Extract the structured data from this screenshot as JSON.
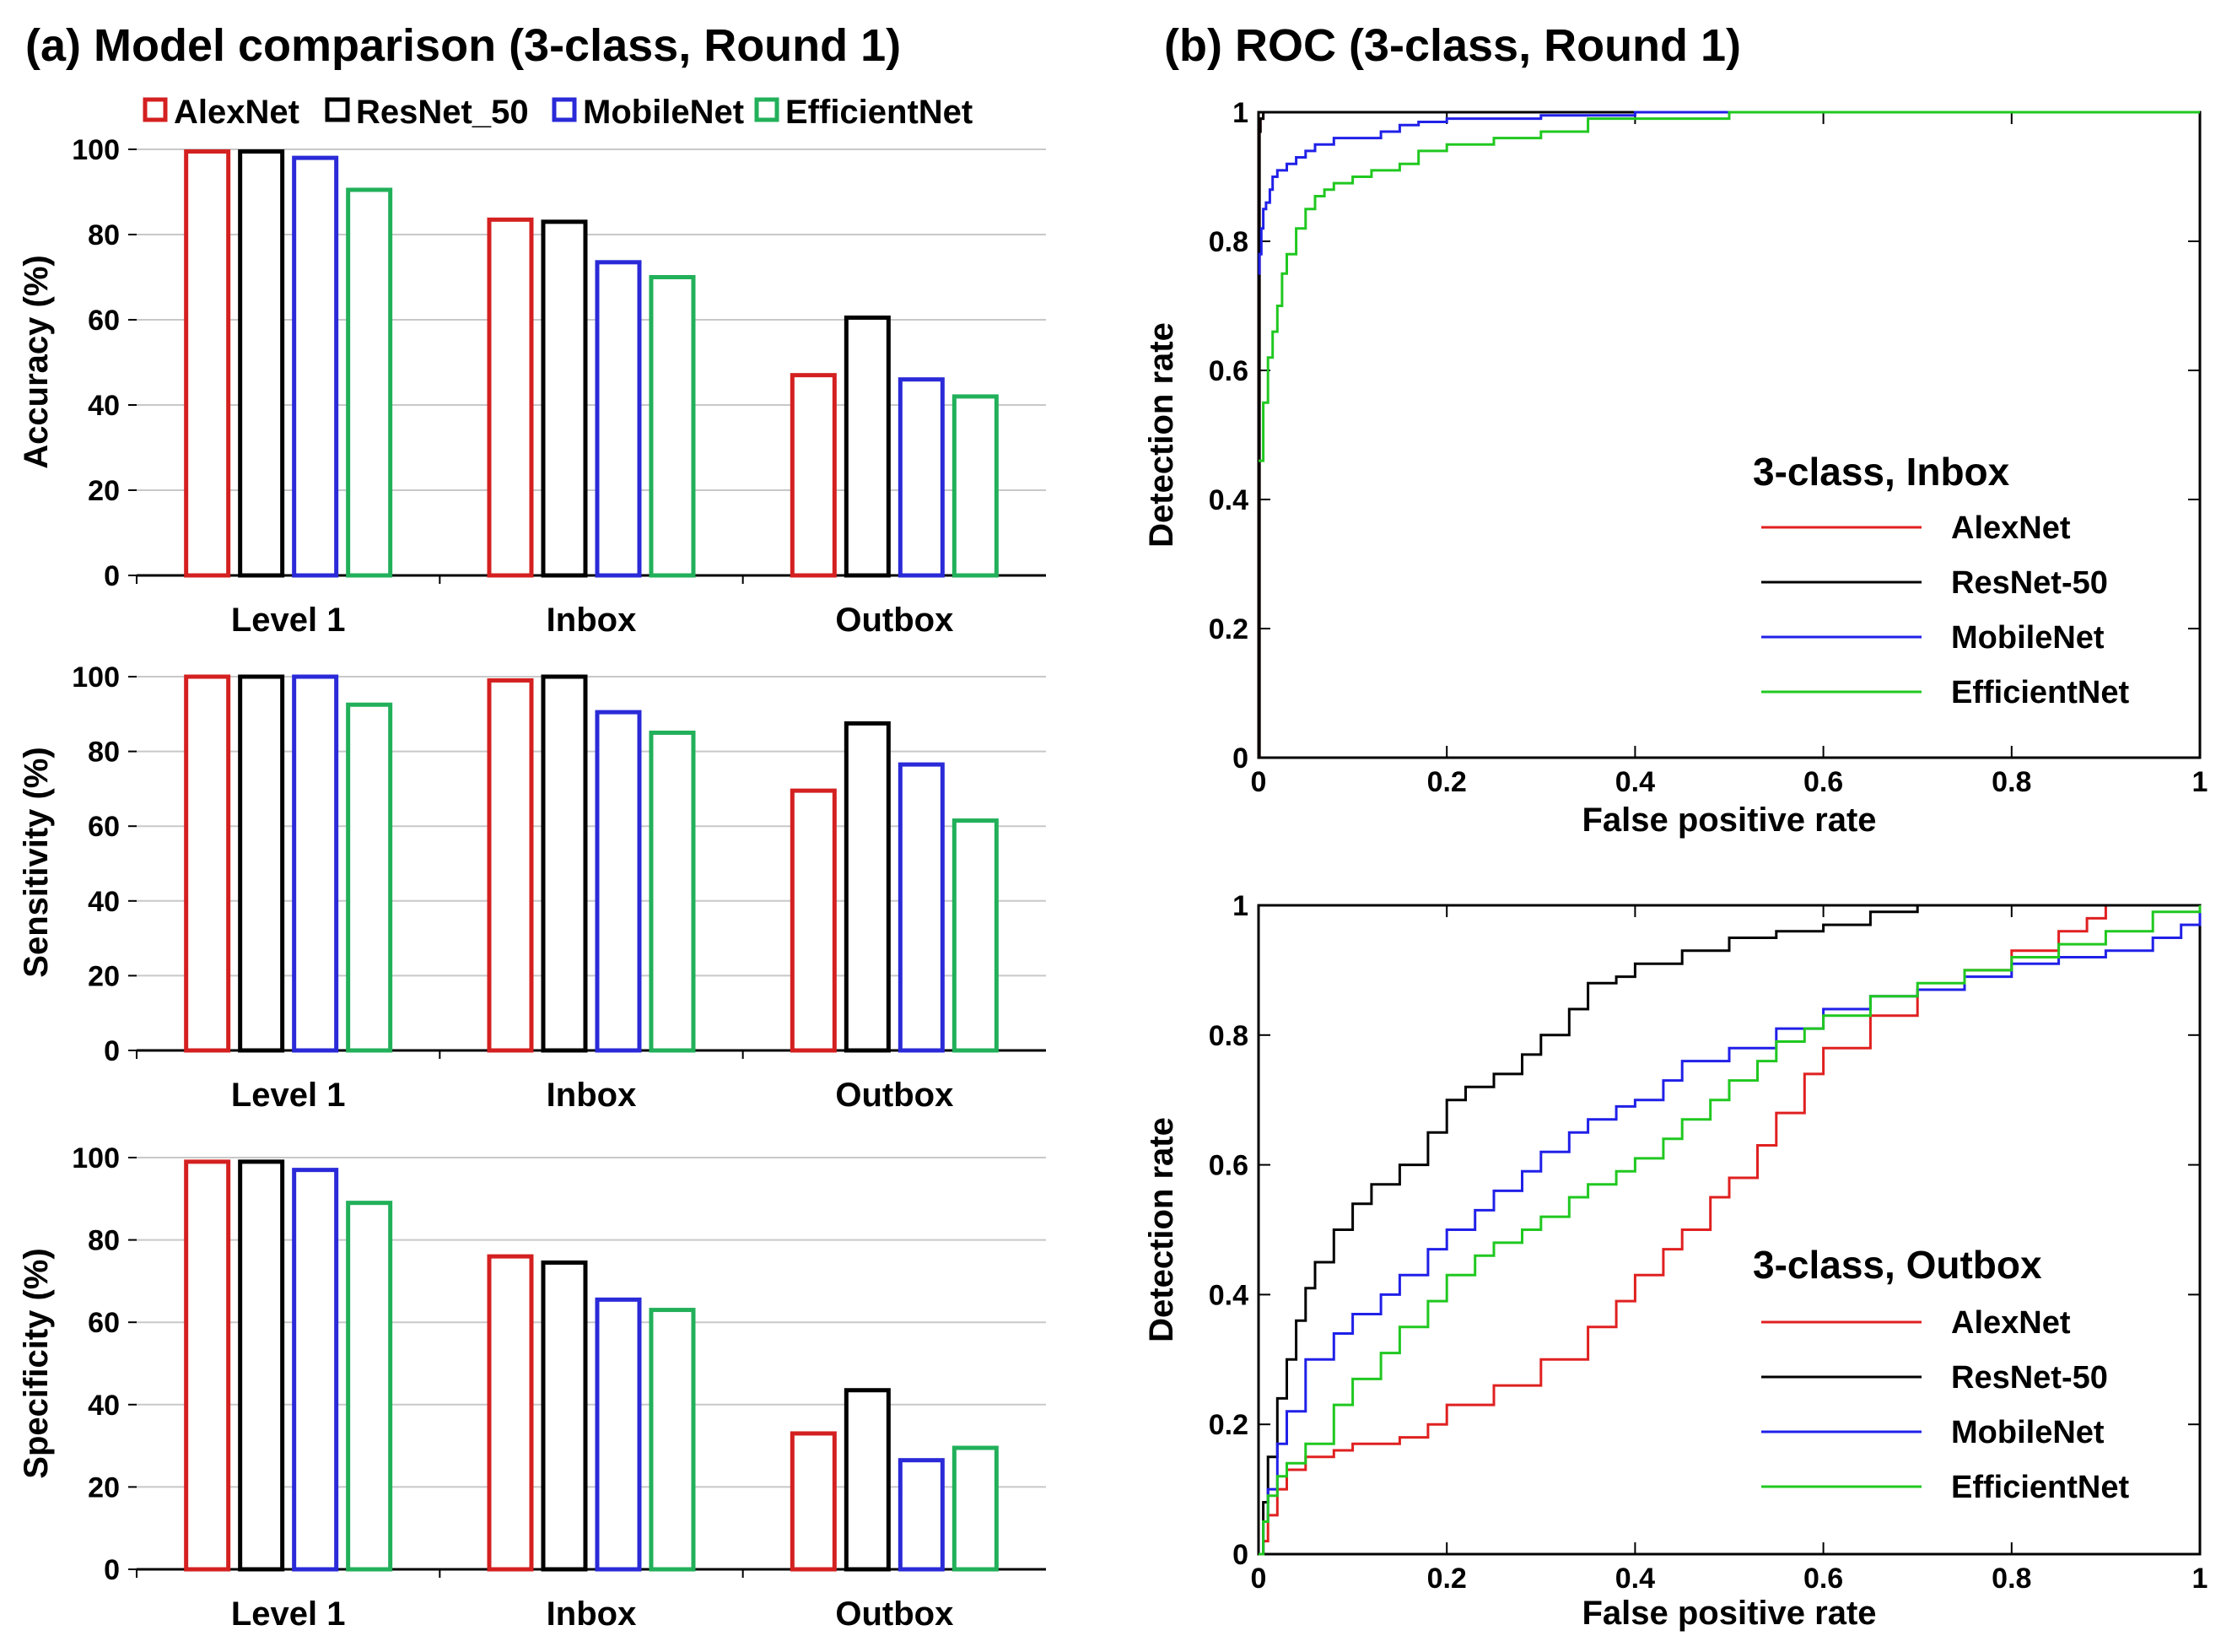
{
  "titles": {
    "a": "(a) Model comparison (3-class, Round 1)",
    "b": "(b) ROC (3-class, Round 1)"
  },
  "colors": {
    "AlexNet": "#d42020",
    "ResNet_50": "#000000",
    "MobileNet": "#2a2ad8",
    "EfficientNet": "#22b05a",
    "roc_AlexNet": "#e02020",
    "roc_ResNet": "#000000",
    "roc_MobileNet": "#2020e8",
    "roc_EfficientNet": "#20c820",
    "grid": "#c8c8c8"
  },
  "chart_data": [
    {
      "type": "bar",
      "id": "accuracy",
      "ylabel": "Accuracy (%)",
      "ylim": [
        0,
        100
      ],
      "yticks": [
        "0",
        "20",
        "40",
        "60",
        "80",
        "100"
      ],
      "categories": [
        "Level 1",
        "Inbox",
        "Outbox"
      ],
      "legend": [
        "AlexNet",
        "ResNet_50",
        "MobileNet",
        "EfficientNet"
      ],
      "series": [
        {
          "name": "AlexNet",
          "values": [
            99.5,
            83.5,
            47
          ]
        },
        {
          "name": "ResNet_50",
          "values": [
            99.5,
            83,
            60.5
          ]
        },
        {
          "name": "MobileNet",
          "values": [
            98,
            73.5,
            46
          ]
        },
        {
          "name": "EfficientNet",
          "values": [
            90.5,
            70,
            42
          ]
        }
      ]
    },
    {
      "type": "bar",
      "id": "sensitivity",
      "ylabel": "Sensitivity (%)",
      "ylim": [
        0,
        100
      ],
      "yticks": [
        "0",
        "20",
        "40",
        "60",
        "80",
        "100"
      ],
      "categories": [
        "Level 1",
        "Inbox",
        "Outbox"
      ],
      "series": [
        {
          "name": "AlexNet",
          "values": [
            100,
            99,
            69.5
          ]
        },
        {
          "name": "ResNet_50",
          "values": [
            100,
            100,
            87.5
          ]
        },
        {
          "name": "MobileNet",
          "values": [
            100,
            90.5,
            76.5
          ]
        },
        {
          "name": "EfficientNet",
          "values": [
            92.5,
            85,
            61.5
          ]
        }
      ]
    },
    {
      "type": "bar",
      "id": "specificity",
      "ylabel": "Specificity (%)",
      "ylim": [
        0,
        100
      ],
      "yticks": [
        "0",
        "20",
        "40",
        "60",
        "80",
        "100"
      ],
      "categories": [
        "Level 1",
        "Inbox",
        "Outbox"
      ],
      "series": [
        {
          "name": "AlexNet",
          "values": [
            99,
            76,
            33
          ]
        },
        {
          "name": "ResNet_50",
          "values": [
            99,
            74.5,
            43.5
          ]
        },
        {
          "name": "MobileNet",
          "values": [
            97,
            65.5,
            26.5
          ]
        },
        {
          "name": "EfficientNet",
          "values": [
            89,
            63,
            29.5
          ]
        }
      ]
    },
    {
      "type": "line",
      "id": "roc_inbox",
      "xlabel": "False positive rate",
      "ylabel": "Detection rate",
      "xlim": [
        0,
        1
      ],
      "ylim": [
        0,
        1
      ],
      "xticks": [
        "0",
        "0.2",
        "0.4",
        "0.6",
        "0.8",
        "1"
      ],
      "yticks": [
        "0",
        "0.2",
        "0.4",
        "0.6",
        "0.8",
        "1"
      ],
      "legend_title": "3-class, Inbox",
      "legend": [
        "AlexNet",
        "ResNet-50",
        "MobileNet",
        "EfficientNet"
      ],
      "series": [
        {
          "name": "AlexNet",
          "x": [
            0,
            0.001,
            0.002,
            0.005,
            0.27,
            1.0
          ],
          "y": [
            0,
            0.97,
            0.99,
            1.0,
            1.0,
            1.0
          ]
        },
        {
          "name": "ResNet-50",
          "x": [
            0,
            0.001,
            0.002,
            0.005,
            0.27,
            1.0
          ],
          "y": [
            0,
            0.97,
            0.99,
            1.0,
            1.0,
            1.0
          ]
        },
        {
          "name": "MobileNet",
          "x": [
            0,
            0.001,
            0.003,
            0.005,
            0.008,
            0.012,
            0.015,
            0.02,
            0.03,
            0.04,
            0.05,
            0.06,
            0.08,
            0.1,
            0.13,
            0.15,
            0.17,
            0.2,
            0.25,
            0.3,
            0.4,
            0.5,
            0.64,
            1.0
          ],
          "y": [
            0.75,
            0.78,
            0.82,
            0.85,
            0.86,
            0.88,
            0.9,
            0.91,
            0.92,
            0.93,
            0.94,
            0.95,
            0.96,
            0.96,
            0.97,
            0.98,
            0.985,
            0.99,
            0.99,
            0.995,
            1.0,
            1.0,
            1.0,
            1.0
          ]
        },
        {
          "name": "EfficientNet",
          "x": [
            0,
            0.005,
            0.01,
            0.015,
            0.02,
            0.025,
            0.03,
            0.04,
            0.05,
            0.06,
            0.07,
            0.08,
            0.1,
            0.12,
            0.15,
            0.17,
            0.2,
            0.25,
            0.3,
            0.35,
            0.4,
            0.5,
            0.64,
            1.0
          ],
          "y": [
            0.46,
            0.55,
            0.62,
            0.66,
            0.7,
            0.75,
            0.78,
            0.82,
            0.85,
            0.87,
            0.88,
            0.89,
            0.9,
            0.91,
            0.92,
            0.94,
            0.95,
            0.96,
            0.97,
            0.99,
            0.99,
            1.0,
            1.0,
            1.0
          ]
        }
      ]
    },
    {
      "type": "line",
      "id": "roc_outbox",
      "xlabel": "False positive rate",
      "ylabel": "Detection rate",
      "xlim": [
        0,
        1
      ],
      "ylim": [
        0,
        1
      ],
      "xticks": [
        "0",
        "0.2",
        "0.4",
        "0.6",
        "0.8",
        "1"
      ],
      "yticks": [
        "0",
        "0.2",
        "0.4",
        "0.6",
        "0.8",
        "1"
      ],
      "legend_title": "3-class, Outbox",
      "legend": [
        "AlexNet",
        "ResNet-50",
        "MobileNet",
        "EfficientNet"
      ],
      "series": [
        {
          "name": "AlexNet",
          "x": [
            0,
            0.005,
            0.01,
            0.02,
            0.03,
            0.05,
            0.08,
            0.1,
            0.15,
            0.18,
            0.2,
            0.25,
            0.3,
            0.35,
            0.38,
            0.4,
            0.43,
            0.45,
            0.48,
            0.5,
            0.53,
            0.55,
            0.58,
            0.6,
            0.65,
            0.7,
            0.75,
            0.8,
            0.85,
            0.88,
            0.9,
            1.0
          ],
          "y": [
            0,
            0.02,
            0.06,
            0.1,
            0.13,
            0.15,
            0.16,
            0.17,
            0.18,
            0.2,
            0.23,
            0.26,
            0.3,
            0.35,
            0.39,
            0.43,
            0.47,
            0.5,
            0.55,
            0.58,
            0.63,
            0.68,
            0.74,
            0.78,
            0.83,
            0.87,
            0.9,
            0.93,
            0.96,
            0.98,
            1.0,
            1.0
          ]
        },
        {
          "name": "ResNet-50",
          "x": [
            0,
            0.005,
            0.01,
            0.02,
            0.03,
            0.04,
            0.05,
            0.06,
            0.08,
            0.1,
            0.12,
            0.15,
            0.18,
            0.2,
            0.22,
            0.25,
            0.28,
            0.3,
            0.33,
            0.35,
            0.38,
            0.4,
            0.45,
            0.5,
            0.55,
            0.6,
            0.65,
            0.7,
            0.75,
            1.0
          ],
          "y": [
            0,
            0.08,
            0.15,
            0.24,
            0.3,
            0.36,
            0.41,
            0.45,
            0.5,
            0.54,
            0.57,
            0.6,
            0.65,
            0.7,
            0.72,
            0.74,
            0.77,
            0.8,
            0.84,
            0.88,
            0.89,
            0.91,
            0.93,
            0.95,
            0.96,
            0.97,
            0.99,
            1.0,
            1.0,
            1.0
          ]
        },
        {
          "name": "MobileNet",
          "x": [
            0,
            0.005,
            0.01,
            0.02,
            0.03,
            0.05,
            0.08,
            0.1,
            0.13,
            0.15,
            0.18,
            0.2,
            0.23,
            0.25,
            0.28,
            0.3,
            0.33,
            0.35,
            0.38,
            0.4,
            0.43,
            0.45,
            0.5,
            0.55,
            0.6,
            0.65,
            0.7,
            0.75,
            0.8,
            0.85,
            0.9,
            0.95,
            0.98,
            1.0
          ],
          "y": [
            0,
            0.05,
            0.1,
            0.17,
            0.22,
            0.3,
            0.34,
            0.37,
            0.4,
            0.43,
            0.47,
            0.5,
            0.53,
            0.56,
            0.59,
            0.62,
            0.65,
            0.67,
            0.69,
            0.7,
            0.73,
            0.76,
            0.78,
            0.81,
            0.84,
            0.86,
            0.87,
            0.89,
            0.91,
            0.92,
            0.93,
            0.95,
            0.97,
            1.0
          ]
        },
        {
          "name": "EfficientNet",
          "x": [
            0,
            0.005,
            0.01,
            0.02,
            0.03,
            0.05,
            0.08,
            0.1,
            0.13,
            0.15,
            0.18,
            0.2,
            0.23,
            0.25,
            0.28,
            0.3,
            0.33,
            0.35,
            0.38,
            0.4,
            0.43,
            0.45,
            0.48,
            0.5,
            0.53,
            0.55,
            0.58,
            0.6,
            0.65,
            0.7,
            0.75,
            0.8,
            0.85,
            0.9,
            0.95,
            1.0
          ],
          "y": [
            0,
            0.05,
            0.09,
            0.12,
            0.14,
            0.17,
            0.23,
            0.27,
            0.31,
            0.35,
            0.39,
            0.43,
            0.46,
            0.48,
            0.5,
            0.52,
            0.55,
            0.57,
            0.59,
            0.61,
            0.64,
            0.67,
            0.7,
            0.73,
            0.76,
            0.79,
            0.81,
            0.83,
            0.86,
            0.88,
            0.9,
            0.92,
            0.94,
            0.96,
            0.99,
            1.0
          ]
        }
      ]
    }
  ]
}
